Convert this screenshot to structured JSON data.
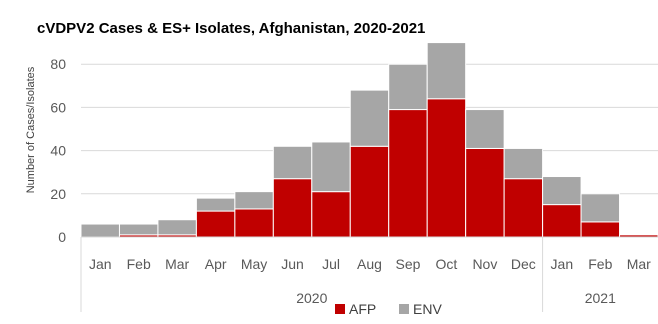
{
  "chart_data": {
    "type": "bar",
    "stacked": true,
    "title": "cVDPV2 Cases & ES+ Isolates, Afghanistan, 2020-2021",
    "xlabel": "",
    "ylabel": "Number of Cases/Isolates",
    "ylim": [
      0,
      90
    ],
    "yticks": [
      0,
      20,
      40,
      60,
      80
    ],
    "grid": true,
    "legend": "bottom",
    "categories": [
      "Jan",
      "Feb",
      "Mar",
      "Apr",
      "May",
      "Jun",
      "Jul",
      "Aug",
      "Sep",
      "Oct",
      "Nov",
      "Dec",
      "Jan",
      "Feb",
      "Mar"
    ],
    "years": [
      {
        "label": "2020",
        "start": 0,
        "end": 11
      },
      {
        "label": "2021",
        "start": 12,
        "end": 14
      }
    ],
    "series": [
      {
        "name": "AFP",
        "color": "#c00000",
        "values": [
          0,
          1,
          1,
          12,
          13,
          27,
          21,
          42,
          59,
          64,
          41,
          27,
          15,
          7,
          1
        ]
      },
      {
        "name": "ENV",
        "color": "#a6a6a6",
        "values": [
          6,
          5,
          7,
          6,
          8,
          15,
          23,
          26,
          21,
          26,
          18,
          14,
          13,
          13,
          0
        ]
      }
    ]
  }
}
